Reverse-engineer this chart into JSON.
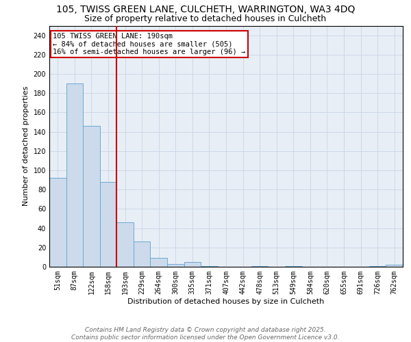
{
  "title_line1": "105, TWISS GREEN LANE, CULCHETH, WARRINGTON, WA3 4DQ",
  "title_line2": "Size of property relative to detached houses in Culcheth",
  "xlabel": "Distribution of detached houses by size in Culcheth",
  "ylabel": "Number of detached properties",
  "bar_labels": [
    "51sqm",
    "87sqm",
    "122sqm",
    "158sqm",
    "193sqm",
    "229sqm",
    "264sqm",
    "300sqm",
    "335sqm",
    "371sqm",
    "407sqm",
    "442sqm",
    "478sqm",
    "513sqm",
    "549sqm",
    "584sqm",
    "620sqm",
    "655sqm",
    "691sqm",
    "726sqm",
    "762sqm"
  ],
  "bar_values": [
    92,
    190,
    146,
    88,
    46,
    26,
    9,
    3,
    5,
    1,
    0,
    0,
    1,
    0,
    1,
    0,
    0,
    0,
    0,
    1,
    2
  ],
  "bar_color": "#ccdaeb",
  "bar_edge_color": "#6aaad4",
  "vline_index": 4,
  "vline_color": "#cc0000",
  "annotation_text": "105 TWISS GREEN LANE: 190sqm\n← 84% of detached houses are smaller (505)\n16% of semi-detached houses are larger (96) →",
  "annotation_box_color": "#cc0000",
  "ylim": [
    0,
    250
  ],
  "yticks": [
    0,
    20,
    40,
    60,
    80,
    100,
    120,
    140,
    160,
    180,
    200,
    220,
    240
  ],
  "grid_color": "#ccd9e8",
  "background_color": "#e8eef5",
  "footer_line1": "Contains HM Land Registry data © Crown copyright and database right 2025.",
  "footer_line2": "Contains public sector information licensed under the Open Government Licence v3.0.",
  "title_fontsize": 10,
  "subtitle_fontsize": 9,
  "axis_label_fontsize": 8,
  "tick_fontsize": 7,
  "annotation_fontsize": 7.5,
  "footer_fontsize": 6.5
}
